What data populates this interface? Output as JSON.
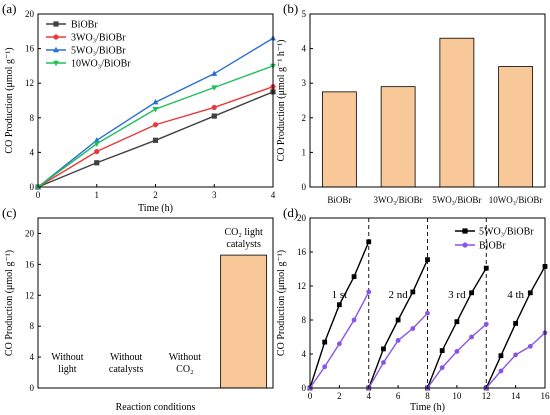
{
  "figure": {
    "panels": [
      {
        "id": "a",
        "label": "(a)",
        "ylabel": "CO Production (μmol g⁻¹)",
        "xlabel": "Time (h)",
        "xticks": [
          "0",
          "1",
          "2",
          "3",
          "4"
        ],
        "yticks": [
          "0",
          "4",
          "8",
          "12",
          "16",
          "20"
        ],
        "legend": [
          "BiOBr",
          "3WO₃/BiOBr",
          "5WO₃/BiOBr",
          "10WO₃/BiOBr"
        ]
      },
      {
        "id": "b",
        "label": "(b)",
        "ylabel": "CO Production (μmol g⁻¹ h⁻¹)",
        "yticks": [
          "0",
          "1",
          "2",
          "3",
          "4",
          "5"
        ],
        "categories": [
          "BiOBr",
          "3WO₃/BiOBr",
          "5WO₃/BiOBr",
          "10WO₃/BiOBr"
        ]
      },
      {
        "id": "c",
        "label": "(c)",
        "ylabel": "CO Production (μmol g⁻¹)",
        "xlabel": "Reaction conditions",
        "yticks": [
          "0",
          "4",
          "8",
          "12",
          "16",
          "20"
        ],
        "categories": [
          [
            "Without",
            "light"
          ],
          [
            "Without",
            "catalysts"
          ],
          [
            "Without",
            "CO₂"
          ],
          [
            "CO₂  light",
            "catalysts"
          ]
        ]
      },
      {
        "id": "d",
        "label": "(d)",
        "ylabel": "CO Production (μmol g⁻¹)",
        "xlabel": "Time (h)",
        "xticks": [
          "0",
          "2",
          "4",
          "6",
          "8",
          "10",
          "12",
          "14",
          "16"
        ],
        "yticks": [
          "0",
          "4",
          "8",
          "12",
          "16",
          "20"
        ],
        "legend": [
          "5WO₃/BiOBr",
          "BiOBr"
        ],
        "cycle_labels": [
          "1 st",
          "2 nd",
          "3 rd",
          "4 th"
        ]
      }
    ]
  },
  "chart_data": [
    {
      "panel": "a",
      "type": "line",
      "xlabel": "Time (h)",
      "ylabel": "CO Production (μmol g⁻¹)",
      "xlim": [
        0,
        4
      ],
      "ylim": [
        0,
        20
      ],
      "x": [
        0,
        1,
        2,
        3,
        4
      ],
      "series": [
        {
          "name": "BiOBr",
          "color": "#404040",
          "marker": "square",
          "values": [
            0,
            2.8,
            5.4,
            8.2,
            11.0
          ]
        },
        {
          "name": "3WO₃/BiOBr",
          "color": "#e8393b",
          "marker": "circle",
          "values": [
            0,
            4.1,
            7.2,
            9.2,
            11.6
          ]
        },
        {
          "name": "5WO₃/BiOBr",
          "color": "#2b6fd6",
          "marker": "triangle-up",
          "values": [
            0,
            5.4,
            9.8,
            13.1,
            17.2
          ]
        },
        {
          "name": "10WO₃/BiOBr",
          "color": "#1fbf5a",
          "marker": "triangle-down",
          "values": [
            0,
            5.0,
            9.0,
            11.5,
            14.0
          ]
        }
      ],
      "legend_position": "top-left"
    },
    {
      "panel": "b",
      "type": "bar",
      "ylabel": "CO Production (μmol g⁻¹ h⁻¹)",
      "ylim": [
        0,
        5
      ],
      "categories": [
        "BiOBr",
        "3WO₃/BiOBr",
        "5WO₃/BiOBr",
        "10WO₃/BiOBr"
      ],
      "values": [
        2.75,
        2.9,
        4.3,
        3.48
      ],
      "bar_color": "#f9c899"
    },
    {
      "panel": "c",
      "type": "bar",
      "xlabel": "Reaction conditions",
      "ylabel": "CO Production (μmol g⁻¹)",
      "ylim": [
        0,
        22
      ],
      "categories": [
        "Without light",
        "Without catalysts",
        "Without CO₂",
        "CO₂  light catalysts"
      ],
      "values": [
        0,
        0,
        0,
        17.2
      ],
      "bar_color": "#f9c899"
    },
    {
      "panel": "d",
      "type": "line",
      "xlabel": "Time (h)",
      "ylabel": "CO Production (μmol g⁻¹)",
      "xlim": [
        0,
        16
      ],
      "ylim": [
        0,
        20
      ],
      "cycle_boundaries": [
        4,
        8,
        12
      ],
      "series": [
        {
          "name": "5WO₃/BiOBr",
          "color": "#000000",
          "marker": "square",
          "cycles": [
            {
              "x": [
                0,
                1,
                2,
                3,
                4
              ],
              "y": [
                0,
                5.4,
                9.8,
                13.1,
                17.2
              ]
            },
            {
              "x": [
                4,
                5,
                6,
                7,
                8
              ],
              "y": [
                0,
                4.6,
                8.0,
                11.3,
                15.1
              ]
            },
            {
              "x": [
                8,
                9,
                10,
                11,
                12
              ],
              "y": [
                0,
                4.4,
                7.8,
                11.2,
                14.1
              ]
            },
            {
              "x": [
                12,
                13,
                14,
                15,
                16
              ],
              "y": [
                0,
                3.8,
                7.6,
                11.2,
                14.3
              ]
            }
          ]
        },
        {
          "name": "BiOBr",
          "color": "#8a54e8",
          "marker": "circle",
          "cycles": [
            {
              "x": [
                0,
                1,
                2,
                3,
                4
              ],
              "y": [
                0,
                2.5,
                5.2,
                8.0,
                11.3
              ]
            },
            {
              "x": [
                4,
                5,
                6,
                7,
                8
              ],
              "y": [
                0,
                3.0,
                5.6,
                7.0,
                8.8
              ]
            },
            {
              "x": [
                8,
                9,
                10,
                11,
                12
              ],
              "y": [
                0,
                2.4,
                4.3,
                6.0,
                7.5
              ]
            },
            {
              "x": [
                12,
                13,
                14,
                15,
                16
              ],
              "y": [
                0,
                2.0,
                3.9,
                4.9,
                6.5
              ]
            }
          ]
        }
      ],
      "legend_position": "top-right"
    }
  ]
}
